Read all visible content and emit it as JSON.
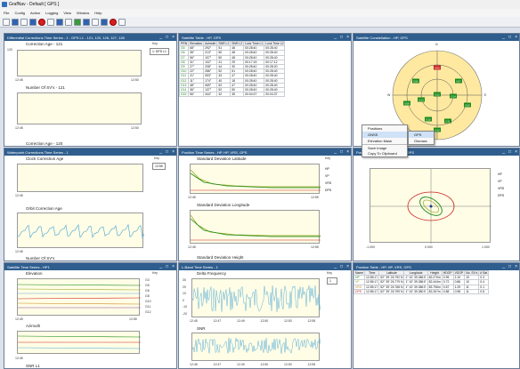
{
  "app": {
    "title": "GrafNav - Default [ GPS ]"
  },
  "menu": [
    "File",
    "Config",
    "Action",
    "Logging",
    "View",
    "Window",
    "Help"
  ],
  "colors": {
    "titlebar": "#2f5e8e",
    "plot_bg": "#fffde6",
    "green": "#1a8a1a",
    "olive": "#99aa22",
    "cyan": "#5aaed8",
    "red": "#cc2222",
    "skyplot_circle": "#ffe9a0"
  },
  "win1": {
    "title": "Differential Corrections Time Series - 1 : GPS L1 - 121, 120, 126, 127, 128",
    "key_label": "Key",
    "key_item": "1: DPS L1",
    "plot1": {
      "label": "Correction Age - 121",
      "y_top": "120",
      "x_start": "12:45",
      "x_end": "12:50"
    },
    "plot2": {
      "label": "Number Of SV's - 121",
      "x_start": "12:45",
      "x_end": "12:50"
    },
    "plot3": {
      "label": "Correction Age - 120"
    }
  },
  "win2": {
    "title": "Satellite Table - HP, GPS",
    "headers": [
      "PRN",
      "Elevation",
      "Azimuth",
      "SNR L1",
      "SNR L2",
      "Lock Time L1",
      "Lock Time L2"
    ],
    "rows": [
      [
        "G5",
        "68°",
        "292°",
        "51",
        "48",
        "00:28:40",
        "00:28:40"
      ],
      [
        "G6",
        "35°",
        "213°",
        "50",
        "48",
        "00:28:40",
        "00:28:40"
      ],
      [
        "G7",
        "56°",
        "107°",
        "50",
        "48",
        "00:28:40",
        "00:28:40"
      ],
      [
        "G8",
        "31°",
        "102°",
        "41",
        "29",
        "00:17:15",
        "00:17:12"
      ],
      [
        "G9",
        "27°",
        "208°",
        "44",
        "30",
        "00:28:40",
        "00:28:20"
      ],
      [
        "G10",
        "22°",
        "286°",
        "52",
        "51",
        "00:28:40",
        "00:28:40"
      ],
      [
        "G11",
        "21°",
        "053°",
        "43",
        "47",
        "00:28:40",
        "00:28:40"
      ],
      [
        "G12",
        "11°",
        "174°",
        "40",
        "18",
        "00:28:40",
        "00:28:40"
      ],
      [
        "G13",
        "48°",
        "069°",
        "52",
        "47",
        "00:28:40",
        "00:28:40"
      ],
      [
        "G14",
        "36°",
        "137°",
        "52",
        "50",
        "00:28:40",
        "00:28:40"
      ],
      [
        "G15",
        "56°",
        "344°",
        "42",
        "35",
        "00:04:37",
        "00:04:37"
      ]
    ]
  },
  "win3": {
    "title": "Satellite Constellation - HP, GPS",
    "labels": {
      "n": "N",
      "e": "E",
      "s": "S",
      "w": "W"
    },
    "sats": [
      "G05",
      "G06",
      "G07",
      "G08",
      "G09",
      "G10",
      "G11",
      "G12",
      "G13",
      "G14",
      "G15"
    ],
    "context_menu": {
      "items": [
        "Positions",
        "GNSS",
        "Elevation Mask",
        "Save Image",
        "Copy To Clipboard"
      ],
      "submenu": [
        "GPS",
        "Glonass"
      ]
    }
  },
  "win4": {
    "title": "Waterpoint Corrections Time Series - 1",
    "key_label": "Key",
    "key_value": "12:55",
    "plot1": {
      "label": "Clock Correction Age",
      "x_start": "12:45"
    },
    "plot2": {
      "label": "Orbit Correction Age",
      "x_start": "12:45"
    },
    "plot3": {
      "label": "Number Of SV's"
    }
  },
  "win5": {
    "title": "Position Time Series - HP, HP, VRS, GPS",
    "key_label": "Key",
    "legend": [
      "HP",
      "VP",
      "VRS",
      "DPS"
    ],
    "plot1": {
      "label": "Standard Deviation Latitude",
      "x_start": "12:45",
      "x_end": "12:55"
    },
    "plot2": {
      "label": "Standard Deviation Longitude",
      "x_start": "12:45",
      "x_end": "12:55"
    },
    "plot3": {
      "label": "Standard Deviation Height"
    }
  },
  "win6": {
    "title": "Position Scatter - HP, HP, VRS, GPS",
    "legend": [
      "HP",
      "VP",
      "VRS",
      "DPS"
    ],
    "axis": {
      "left": "-1.000",
      "mid": "0.000",
      "right": "1.000"
    }
  },
  "win7": {
    "title": "Satellite Time Series - HP1",
    "key_label": "Key",
    "plot1": {
      "label": "Elevation",
      "x_start": "12:45",
      "x_end": "12:55"
    },
    "plot2": {
      "label": "Azimuth",
      "x_start": "12:45"
    },
    "plot3": {
      "label": "SNR L1"
    },
    "key_ticks": [
      "G3",
      "G5",
      "G6",
      "G8",
      "G10",
      "G11",
      "G12"
    ]
  },
  "win8": {
    "title": "L-Band Time Series - 1",
    "key_label": "Key",
    "key_value": "1",
    "plot1": {
      "label": "Delta Frequency",
      "ticks": [
        "12:45",
        "12:47",
        "12:49",
        "12:50",
        "12:53",
        "12:55"
      ],
      "y": [
        "30",
        "20",
        "10",
        "0",
        "-10",
        "-20"
      ]
    },
    "plot2": {
      "label": "SNR",
      "ticks": [
        "12:45",
        "12:47",
        "12:49",
        "12:50",
        "12:53",
        "12:55"
      ]
    }
  },
  "win9": {
    "title": "Position Table - HP, HP, VRS, GPS",
    "headers": [
      "Name",
      "Time",
      "Latitude",
      "Longitude",
      "Height",
      "HDOP",
      "VDOP",
      "No. SV's",
      "# Sat"
    ],
    "rows": [
      [
        "HP",
        "12:55:17",
        "52° 39' 26.792 N",
        "1° 42' 39.386 E",
        "82.270m",
        "0.95",
        "1.10",
        "10",
        "0.3"
      ],
      [
        "VP",
        "12:55:17",
        "52° 39' 26.779 N",
        "1° 42' 39.386 E",
        "82.444m",
        "0.72",
        "0.86",
        "10",
        "0.4"
      ],
      [
        "VRS",
        "12:55:17",
        "52° 39' 26.768 N",
        "1° 42' 39.386 E",
        "83.796m",
        "0.67",
        "1.29",
        "11",
        "0.1"
      ],
      [
        "DPS",
        "12:55:17",
        "52° 39' 26.799 N",
        "1° 42' 39.380 E",
        "82.267m",
        "0.88",
        "0.98",
        "11",
        "0.8"
      ]
    ]
  }
}
